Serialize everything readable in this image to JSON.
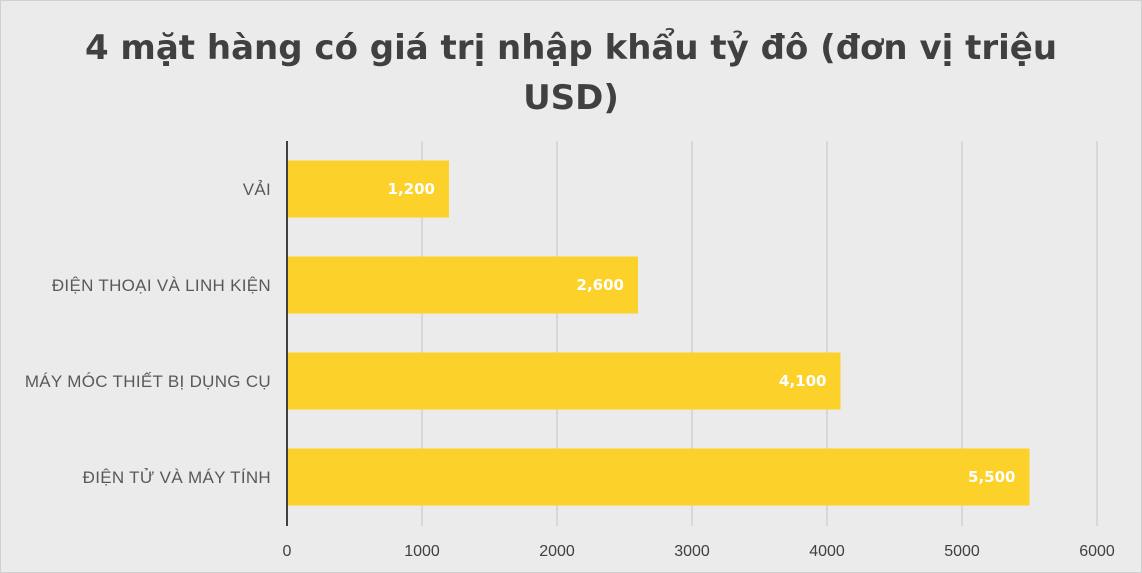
{
  "chart_data": {
    "type": "bar",
    "orientation": "horizontal",
    "title_lines": [
      "4 mặt hàng có giá trị nhập khẩu tỷ đô (đơn vị triệu",
      "USD)"
    ],
    "categories": [
      "VẢI",
      "ĐIỆN THOẠI VÀ LINH KIỆN",
      "MÁY MÓC THIẾT BỊ DỤNG CỤ",
      "ĐIỆN TỬ VÀ MÁY TÍNH"
    ],
    "values": [
      1200,
      2600,
      4100,
      5500
    ],
    "data_labels": [
      "1,200",
      "2,600",
      "4,100",
      "5,500"
    ],
    "xlim": [
      0,
      6000
    ],
    "xticks": [
      0,
      1000,
      2000,
      3000,
      4000,
      5000,
      6000
    ],
    "grid": true,
    "legend": false,
    "bar_color": "#fcd12a",
    "background": "#ebebeb"
  }
}
